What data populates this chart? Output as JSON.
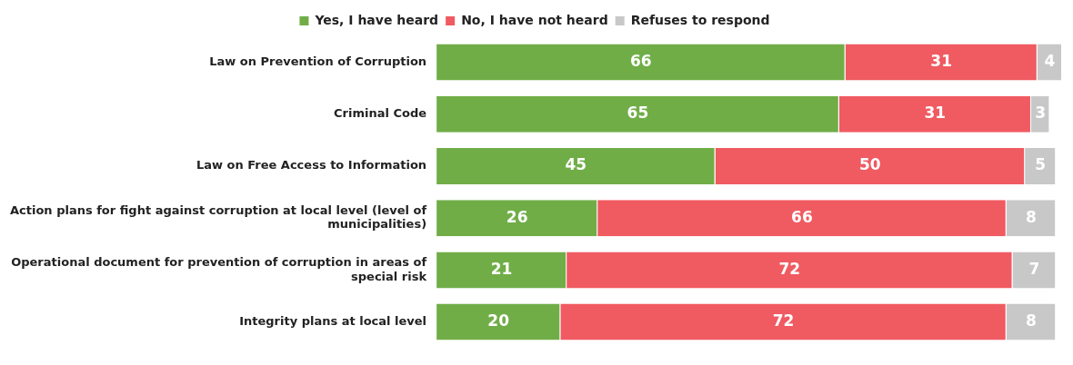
{
  "chart_data": {
    "type": "bar",
    "orientation": "horizontal",
    "stacked": true,
    "data_labels": true,
    "legend": "top",
    "categories": [
      "Law on Prevention of Corruption",
      "Criminal Code",
      "Law on Free Access to Information",
      "Action plans for fight against corruption at local level (level of municipalities)",
      "Operational document for prevention of corruption in areas of special risk",
      "Integrity plans at local level"
    ],
    "series": [
      {
        "name": "Yes, I have heard",
        "color": "#70ad47",
        "values": [
          66,
          65,
          45,
          26,
          21,
          20
        ]
      },
      {
        "name": "No, I have not heard",
        "color": "#f05a61",
        "values": [
          31,
          31,
          50,
          66,
          72,
          72
        ]
      },
      {
        "name": "Refuses to respond",
        "color": "#c8c8c8",
        "values": [
          4,
          3,
          5,
          8,
          7,
          8
        ]
      }
    ]
  }
}
